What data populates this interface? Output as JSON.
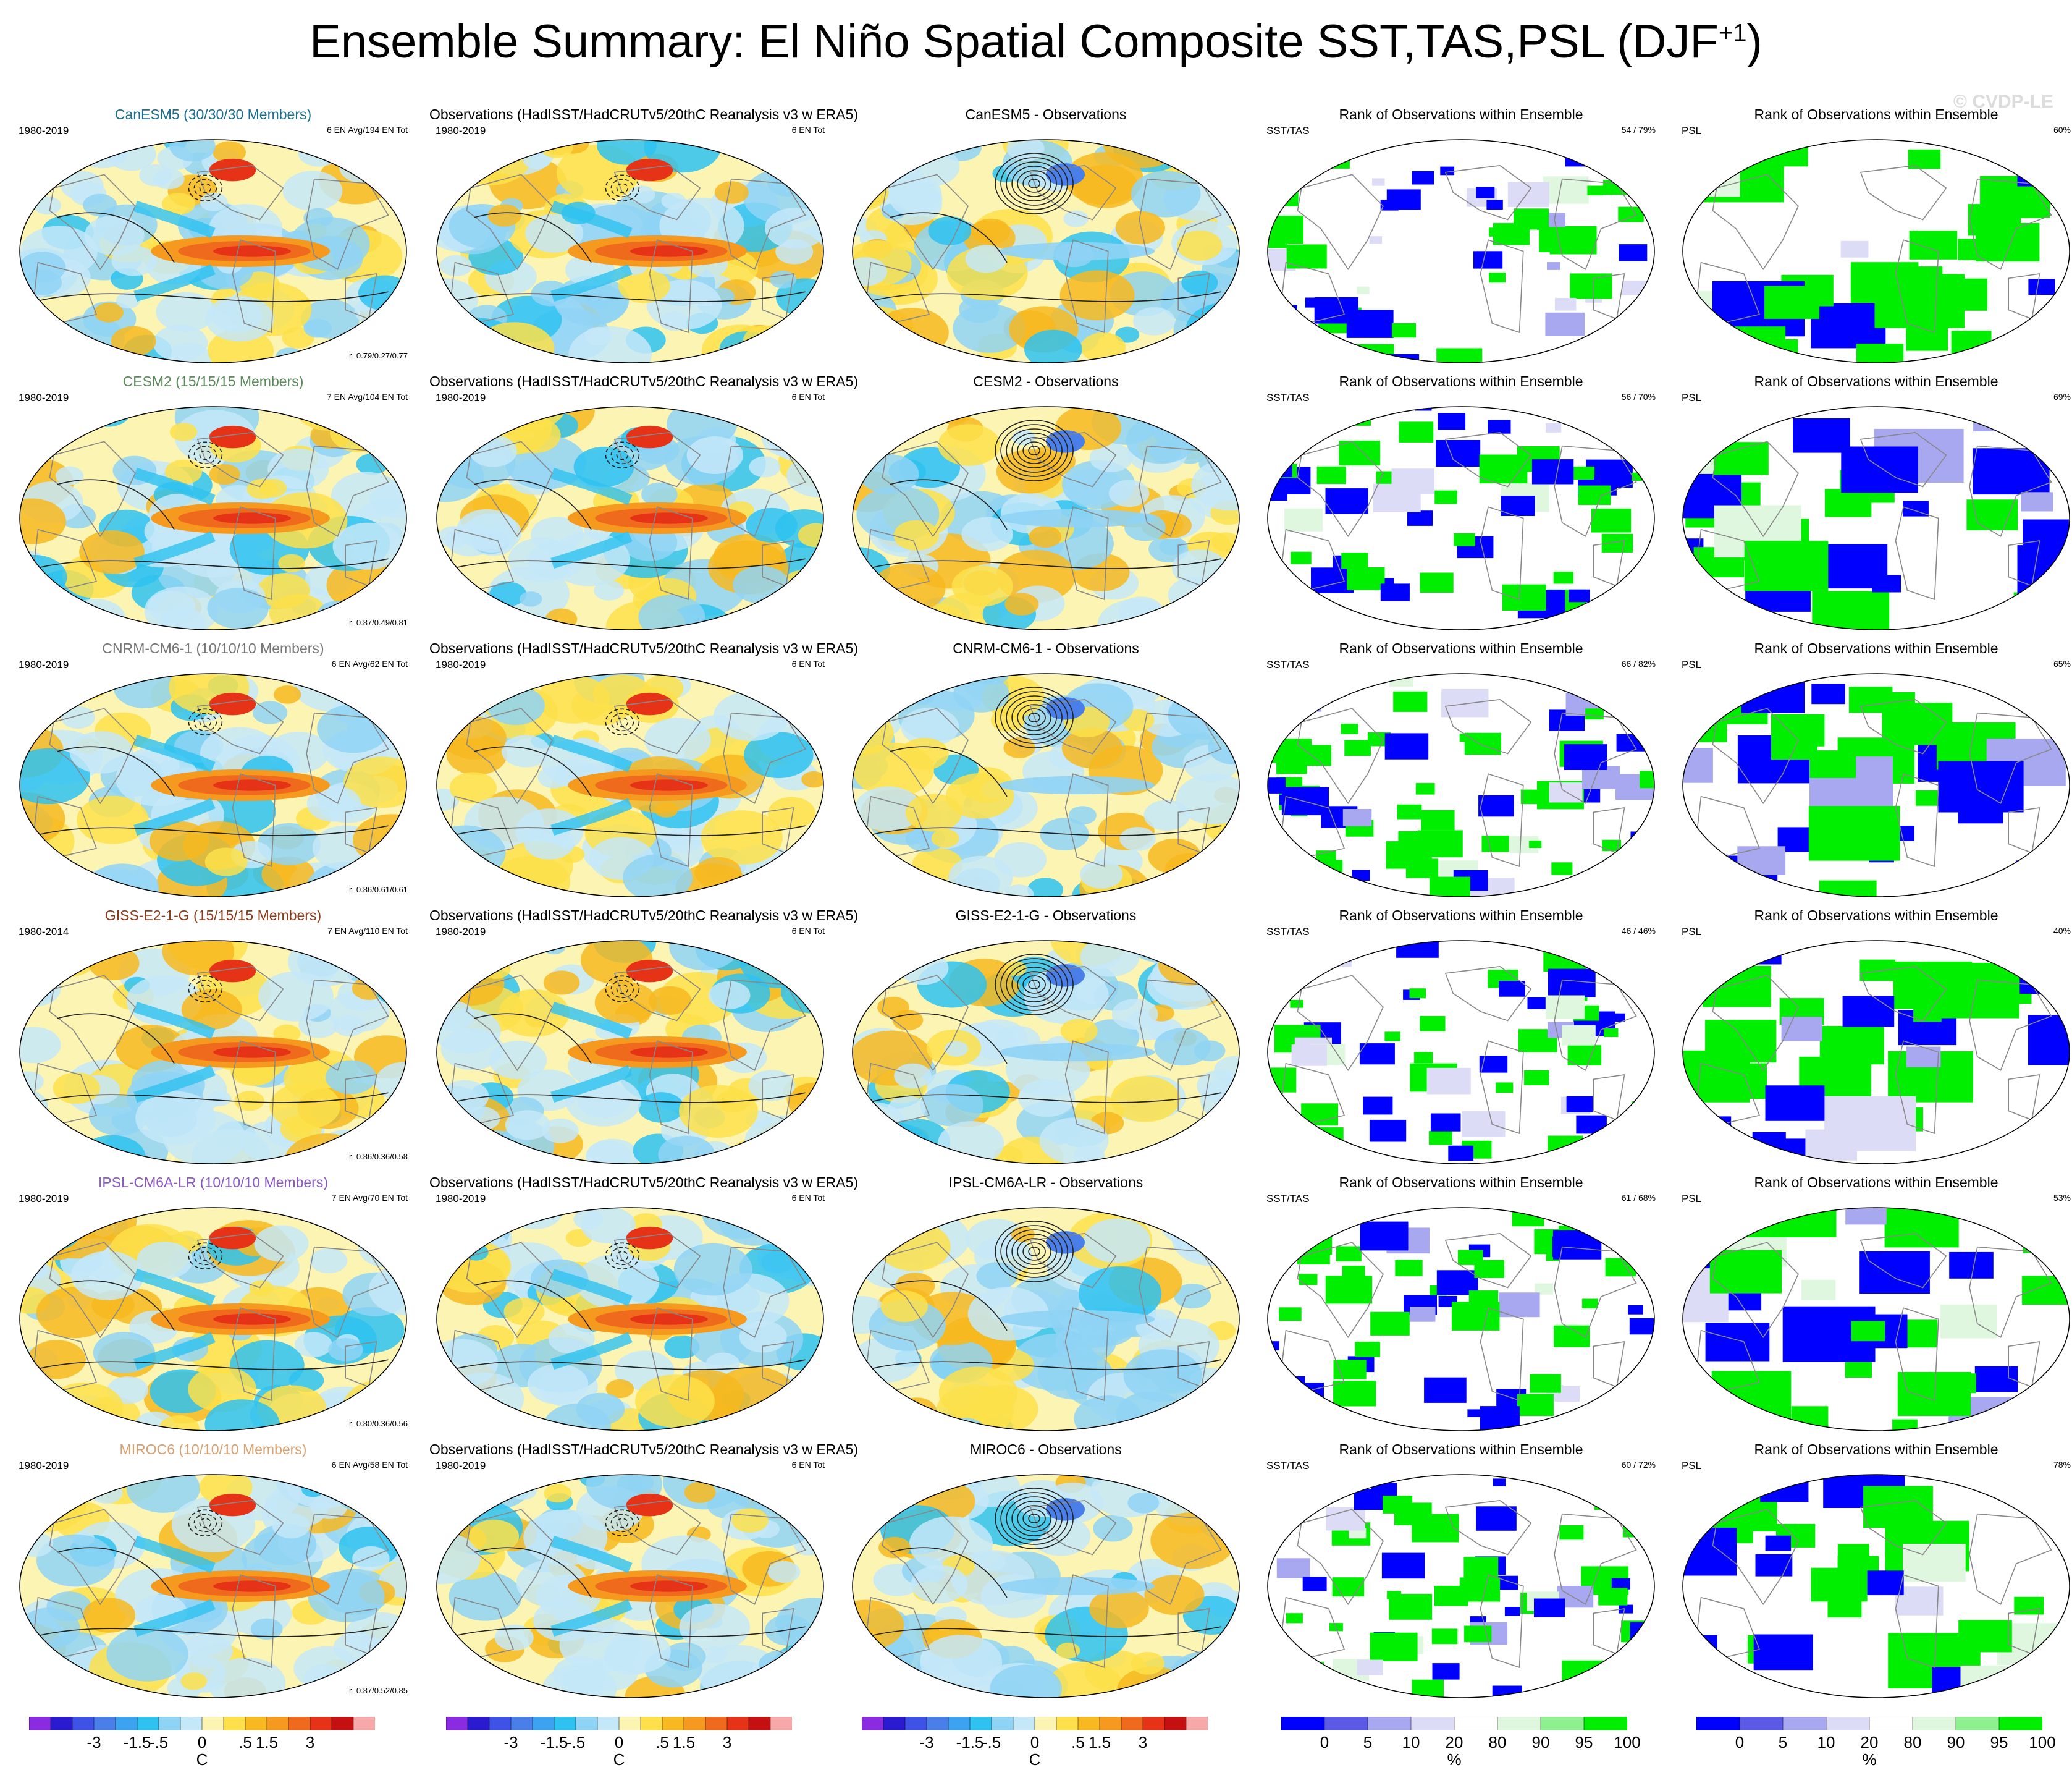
{
  "figure": {
    "title": "Ensemble Summary: El Niño Spatial Composite SST,TAS,PSL (DJF",
    "title_superscript": "+1",
    "title_close": ")",
    "watermark": "© CVDP-LE"
  },
  "column_titles": {
    "observations": "Observations (HadISST/HadCRUTv5/20thC Reanalysis v3 w ERA5)",
    "rank": "Rank of Observations within Ensemble",
    "obs_years": "1980-2019",
    "obs_count": "6 EN Tot",
    "diff_suffix": " - Observations",
    "sst_label": "SST/TAS",
    "psl_label": "PSL"
  },
  "rows": [
    {
      "model": "CanESM5",
      "members": "(30/30/30 Members)",
      "years": "1980-2019",
      "count": "6 EN Avg/194 EN Tot",
      "corr": "r=0.79/0.27/0.77",
      "rank_sst": "54 / 79%",
      "rank_psl": "60%",
      "color": "#1a6e8e"
    },
    {
      "model": "CESM2",
      "members": "(15/15/15 Members)",
      "years": "1980-2019",
      "count": "7 EN Avg/104 EN Tot",
      "corr": "r=0.87/0.49/0.81",
      "rank_sst": "56 / 70%",
      "rank_psl": "69%",
      "color": "#5b8a5b"
    },
    {
      "model": "CNRM-CM6-1",
      "members": "(10/10/10 Members)",
      "years": "1980-2019",
      "count": "6 EN Avg/62 EN Tot",
      "corr": "r=0.86/0.61/0.61",
      "rank_sst": "66 / 82%",
      "rank_psl": "65%",
      "color": "#777777"
    },
    {
      "model": "GISS-E2-1-G",
      "members": "(15/15/15 Members)",
      "years": "1980-2014",
      "count": "7 EN Avg/110 EN Tot",
      "corr": "r=0.86/0.36/0.58",
      "rank_sst": "46 / 46%",
      "rank_psl": "40%",
      "color": "#8b3a1a"
    },
    {
      "model": "IPSL-CM6A-LR",
      "members": "(10/10/10 Members)",
      "years": "1980-2019",
      "count": "7 EN Avg/70 EN Tot",
      "corr": "r=0.80/0.36/0.56",
      "rank_sst": "61 / 68%",
      "rank_psl": "53%",
      "color": "#8a5ac2"
    },
    {
      "model": "MIROC6",
      "members": "(10/10/10 Members)",
      "years": "1980-2019",
      "count": "6 EN Avg/58 EN Tot",
      "corr": "r=0.87/0.52/0.85",
      "rank_sst": "60 / 72%",
      "rank_psl": "78%",
      "color": "#d9a070"
    }
  ],
  "colorbars": {
    "temperature": {
      "ticks": [
        "-3",
        "-1.5",
        "-.5",
        "0",
        ".5",
        "1.5",
        "3"
      ],
      "unit": "C",
      "colors": [
        "#8a2be2",
        "#2a1ad0",
        "#3f52e8",
        "#4a7ee8",
        "#3ba3ef",
        "#2ec2f0",
        "#8fd3f5",
        "#c4e8f8",
        "#fbf4b2",
        "#fde04a",
        "#f7b820",
        "#f59a1e",
        "#ef6a1c",
        "#e63216",
        "#c41010",
        "#f7a8a8"
      ]
    },
    "rank": {
      "ticks": [
        "0",
        "5",
        "10",
        "20",
        "80",
        "90",
        "95",
        "100"
      ],
      "unit": "%",
      "colors": [
        "#0000ff",
        "#5a5ae6",
        "#a8a8f0",
        "#dcdcf7",
        "#ffffff",
        "#dff7df",
        "#8ff08f",
        "#00ee00"
      ]
    }
  },
  "chart_data": {
    "type": "heatmap",
    "title": "Ensemble Summary: El Niño Spatial Composite SST,TAS,PSL (DJF+1)",
    "panels_per_row": [
      "Ensemble mean composite",
      "Observations composite",
      "Ensemble mean - Observations",
      "Rank of Observations (SST/TAS)",
      "Rank of Observations (PSL)"
    ],
    "models": [
      "CanESM5",
      "CESM2",
      "CNRM-CM6-1",
      "GISS-E2-1-G",
      "IPSL-CM6A-LR",
      "MIROC6"
    ],
    "pattern_correlations_sst_tas_psl": [
      [
        0.79,
        0.27,
        0.77
      ],
      [
        0.87,
        0.49,
        0.81
      ],
      [
        0.86,
        0.61,
        0.61
      ],
      [
        0.86,
        0.36,
        0.58
      ],
      [
        0.8,
        0.36,
        0.56
      ],
      [
        0.87,
        0.52,
        0.85
      ]
    ],
    "rank_sst_tas_percent": [
      [
        54,
        79
      ],
      [
        56,
        70
      ],
      [
        66,
        82
      ],
      [
        46,
        46
      ],
      [
        61,
        68
      ],
      [
        60,
        72
      ]
    ],
    "rank_psl_percent": [
      60,
      69,
      65,
      40,
      53,
      78
    ],
    "temperature_scale_c": [
      -3,
      -1.5,
      -0.5,
      0,
      0.5,
      1.5,
      3
    ],
    "rank_scale_percent": [
      0,
      5,
      10,
      20,
      80,
      90,
      95,
      100
    ]
  }
}
